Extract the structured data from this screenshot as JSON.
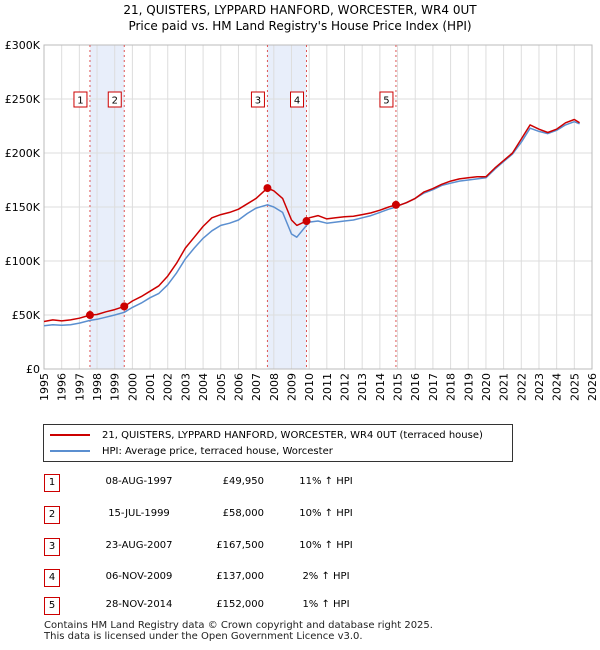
{
  "title_line1": "21, QUISTERS, LYPPARD HANFORD, WORCESTER, WR4 0UT",
  "title_line2": "Price paid vs. HM Land Registry's House Price Index (HPI)",
  "legend": {
    "property": "21, QUISTERS, LYPPARD HANFORD, WORCESTER, WR4 0UT (terraced house)",
    "hpi": "HPI: Average price, terraced house, Worcester"
  },
  "colors": {
    "property": "#cc0000",
    "hpi": "#5b8fd0",
    "shade": "#e8eefa",
    "grid": "#dddddd",
    "marker_border": "#cc0000"
  },
  "transactions": [
    {
      "num": "1",
      "date": "08-AUG-1997",
      "price": "£49,950",
      "hpi": "11% ↑ HPI"
    },
    {
      "num": "2",
      "date": "15-JUL-1999",
      "price": "£58,000",
      "hpi": "10% ↑ HPI"
    },
    {
      "num": "3",
      "date": "23-AUG-2007",
      "price": "£167,500",
      "hpi": "10% ↑ HPI"
    },
    {
      "num": "4",
      "date": "06-NOV-2009",
      "price": "£137,000",
      "hpi": "2% ↑ HPI"
    },
    {
      "num": "5",
      "date": "28-NOV-2014",
      "price": "£152,000",
      "hpi": "1% ↑ HPI"
    }
  ],
  "footer_line1": "Contains HM Land Registry data © Crown copyright and database right 2025.",
  "footer_line2": "This data is licensed under the Open Government Licence v3.0.",
  "chart_data": {
    "type": "line",
    "title": "21, QUISTERS, LYPPARD HANFORD, WORCESTER, WR4 0UT",
    "subtitle": "Price paid vs. HM Land Registry's House Price Index (HPI)",
    "xlabel": "",
    "ylabel": "",
    "xlim": [
      1995,
      2026
    ],
    "ylim": [
      0,
      300000
    ],
    "y_ticks": [
      0,
      50000,
      100000,
      150000,
      200000,
      250000,
      300000
    ],
    "y_tick_labels": [
      "£0",
      "£50K",
      "£100K",
      "£150K",
      "£200K",
      "£250K",
      "£300K"
    ],
    "x_ticks": [
      1995,
      1996,
      1997,
      1998,
      1999,
      2000,
      2001,
      2002,
      2003,
      2004,
      2005,
      2006,
      2007,
      2008,
      2009,
      2010,
      2011,
      2012,
      2013,
      2014,
      2015,
      2016,
      2017,
      2018,
      2019,
      2020,
      2021,
      2022,
      2023,
      2024,
      2025,
      2026
    ],
    "x_tick_labels": [
      "1995",
      "1996",
      "1997",
      "1998",
      "1999",
      "2000",
      "2001",
      "2002",
      "2003",
      "2004",
      "2005",
      "2006",
      "2007",
      "2008",
      "2009",
      "2010",
      "2011",
      "2012",
      "2013",
      "2014",
      "2015",
      "2016",
      "2017",
      "2018",
      "2019",
      "2020",
      "2021",
      "2022",
      "2023",
      "2024",
      "2025",
      "2026"
    ],
    "grid": true,
    "shaded_periods": [
      [
        1997.6,
        1999.54
      ],
      [
        2007.64,
        2009.85
      ]
    ],
    "sales": [
      {
        "label": "1",
        "x": 1997.6,
        "y": 49950
      },
      {
        "label": "2",
        "x": 1999.54,
        "y": 58000
      },
      {
        "label": "3",
        "x": 2007.64,
        "y": 167500
      },
      {
        "label": "4",
        "x": 2009.85,
        "y": 137000
      },
      {
        "label": "5",
        "x": 2014.91,
        "y": 152000
      }
    ],
    "series": [
      {
        "name": "21, QUISTERS, LYPPARD HANFORD, WORCESTER, WR4 0UT (terraced house)",
        "x": [
          1995,
          1995.5,
          1996,
          1996.5,
          1997,
          1997.6,
          1998,
          1998.5,
          1999,
          1999.54,
          2000,
          2000.5,
          2001,
          2001.5,
          2002,
          2002.5,
          2003,
          2003.5,
          2004,
          2004.5,
          2005,
          2005.5,
          2006,
          2006.5,
          2007,
          2007.64,
          2008,
          2008.5,
          2009,
          2009.3,
          2009.85,
          2010,
          2010.5,
          2011,
          2011.5,
          2012,
          2012.5,
          2013,
          2013.5,
          2014,
          2014.5,
          2014.91,
          2015,
          2015.5,
          2016,
          2016.5,
          2017,
          2017.5,
          2018,
          2018.5,
          2019,
          2019.5,
          2020,
          2020.5,
          2021,
          2021.5,
          2022,
          2022.5,
          2023,
          2023.5,
          2024,
          2024.5,
          2025,
          2025.3
        ],
        "values": [
          44000,
          45500,
          44500,
          45500,
          47000,
          49950,
          50500,
          53000,
          55000,
          58000,
          63000,
          67000,
          72000,
          77000,
          86000,
          98000,
          112000,
          122000,
          132000,
          140000,
          143000,
          145000,
          148000,
          153000,
          158000,
          167500,
          165000,
          158000,
          138000,
          133000,
          137000,
          140000,
          142000,
          139000,
          140000,
          141000,
          141500,
          143000,
          144500,
          147000,
          150000,
          152000,
          151000,
          154000,
          158000,
          164000,
          167000,
          171000,
          174000,
          176000,
          177000,
          178000,
          178000,
          186000,
          193000,
          200000,
          213000,
          226000,
          222000,
          219000,
          222000,
          228000,
          231000,
          228000
        ]
      },
      {
        "name": "HPI: Average price, terraced house, Worcester",
        "x": [
          1995,
          1995.5,
          1996,
          1996.5,
          1997,
          1997.6,
          1998,
          1998.5,
          1999,
          1999.54,
          2000,
          2000.5,
          2001,
          2001.5,
          2002,
          2002.5,
          2003,
          2003.5,
          2004,
          2004.5,
          2005,
          2005.5,
          2006,
          2006.5,
          2007,
          2007.64,
          2008,
          2008.5,
          2009,
          2009.3,
          2009.85,
          2010,
          2010.5,
          2011,
          2011.5,
          2012,
          2012.5,
          2013,
          2013.5,
          2014,
          2014.5,
          2014.91,
          2015,
          2015.5,
          2016,
          2016.5,
          2017,
          2017.5,
          2018,
          2018.5,
          2019,
          2019.5,
          2020,
          2020.5,
          2021,
          2021.5,
          2022,
          2022.5,
          2023,
          2023.5,
          2024,
          2024.5,
          2025,
          2025.3
        ],
        "values": [
          40000,
          41000,
          40500,
          41000,
          42500,
          45000,
          46000,
          48000,
          50000,
          52500,
          57000,
          61000,
          66000,
          70000,
          78000,
          89000,
          102000,
          112000,
          121000,
          128000,
          133000,
          135000,
          138000,
          144000,
          149000,
          152000,
          150000,
          145000,
          125000,
          122000,
          133000,
          136000,
          137000,
          135000,
          136000,
          137000,
          138000,
          140000,
          142000,
          145000,
          148000,
          150000,
          151000,
          154000,
          158000,
          163000,
          166000,
          170000,
          172000,
          174000,
          175000,
          176000,
          177000,
          185000,
          192000,
          199000,
          210000,
          223000,
          220000,
          218000,
          221000,
          226000,
          229000,
          227000
        ]
      }
    ]
  }
}
